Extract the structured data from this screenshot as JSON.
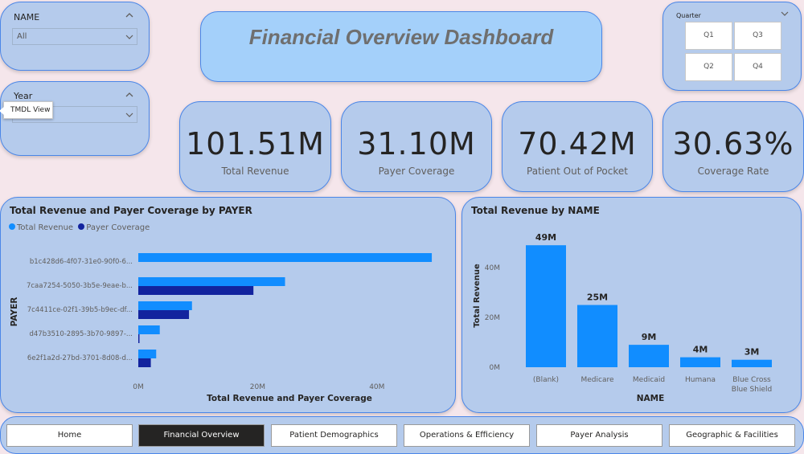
{
  "slicers": {
    "name": {
      "title": "NAME",
      "value": "All"
    },
    "year": {
      "title": "Year",
      "tooltip": "TMDL View"
    },
    "quarter": {
      "title": "Quarter",
      "buttons": [
        "Q1",
        "Q3",
        "Q2",
        "Q4"
      ]
    }
  },
  "header": {
    "title": "Financial Overview Dashboard"
  },
  "kpis": [
    {
      "value": "101.51M",
      "label": "Total Revenue"
    },
    {
      "value": "31.10M",
      "label": "Payer Coverage"
    },
    {
      "value": "70.42M",
      "label": "Patient Out of Pocket"
    },
    {
      "value": "30.63%",
      "label": "Coverage Rate"
    }
  ],
  "chart_data": [
    {
      "type": "bar",
      "orientation": "horizontal",
      "title": "Total Revenue and Payer Coverage by PAYER",
      "xlabel": "Total Revenue and Payer Coverage",
      "ylabel": "PAYER",
      "categories": [
        "b1c428d6-4f07-31e0-90f0-6...",
        "7caa7254-5050-3b5e-9eae-b...",
        "7c4411ce-02f1-39b5-b9ec-df...",
        "d47b3510-2895-3b70-9897-...",
        "6e2f1a2d-27bd-3701-8d08-d..."
      ],
      "series": [
        {
          "name": "Total Revenue",
          "values": [
            49.2,
            24.6,
            9.0,
            3.6,
            3.0
          ]
        },
        {
          "name": "Payer Coverage",
          "values": [
            0,
            19.3,
            8.5,
            0.2,
            2.1
          ]
        }
      ],
      "xticks": [
        "0M",
        "20M",
        "40M"
      ],
      "xtick_values": [
        0,
        20,
        40
      ],
      "xlim": [
        0,
        50
      ],
      "legend": "top-left",
      "colors": [
        "#118dff",
        "#12239e"
      ]
    },
    {
      "type": "bar",
      "title": "Total Revenue by NAME",
      "xlabel": "NAME",
      "ylabel": "Total Revenue",
      "categories": [
        "(Blank)",
        "Medicare",
        "Medicaid",
        "Humana",
        "Blue Cross Blue Shield"
      ],
      "values": [
        49,
        25,
        9,
        4,
        3
      ],
      "data_labels": [
        "49M",
        "25M",
        "9M",
        "4M",
        "3M"
      ],
      "yticks": [
        "0M",
        "20M",
        "40M"
      ],
      "ytick_values": [
        0,
        20,
        40
      ],
      "ylim": [
        0,
        51
      ],
      "colors": [
        "#118dff"
      ]
    }
  ],
  "nav": {
    "items": [
      "Home",
      "Financial Overview",
      "Patient Demographics",
      "Operations & Efficiency",
      "Payer Analysis",
      "Geographic & Facilities"
    ],
    "active_index": 1
  }
}
